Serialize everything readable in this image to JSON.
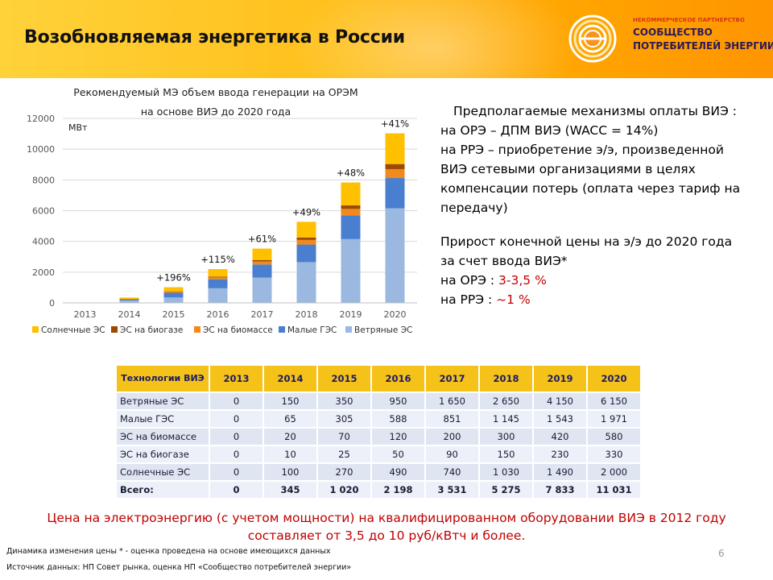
{
  "header": {
    "title": "Возобновляемая энергетика в России"
  },
  "logo": {
    "small": "НЕКОММЕРЧЕСКОЕ ПАРТНЕРСТВО",
    "line1": "СООБЩЕСТВО",
    "line2": "ПОТРЕБИТЕЛЕЙ ЭНЕРГИИ"
  },
  "colors": {
    "solar": "#ffc000",
    "biogas": "#9c4a00",
    "biomass": "#f08a1c",
    "hydro": "#4a7fd0",
    "wind": "#9ab8e0",
    "accent_red": "#c00000",
    "table_header": "#f5c21a"
  },
  "chart_data": {
    "type": "bar",
    "stacked": true,
    "title": "Рекомендуемый МЭ объем ввода генерации на ОРЭМ на основе ВИЭ до 2020 года",
    "title_lines": [
      "Рекомендуемый МЭ объем ввода генерации на ОРЭМ",
      "на основе ВИЭ до 2020 года"
    ],
    "ylabel": "МВт",
    "ylim": [
      0,
      12000
    ],
    "yticks": [
      "0",
      "2000",
      "4000",
      "6000",
      "8000",
      "10000",
      "12000"
    ],
    "grid": true,
    "legend_position": "bottom",
    "categories": [
      "2013",
      "2014",
      "2015",
      "2016",
      "2017",
      "2018",
      "2019",
      "2020"
    ],
    "series": [
      {
        "name": "Ветряные ЭС",
        "color": "#9ab8e0",
        "values": [
          0,
          150,
          350,
          950,
          1650,
          2650,
          4150,
          6150
        ]
      },
      {
        "name": "Малые ГЭС",
        "color": "#4a7fd0",
        "values": [
          0,
          65,
          305,
          588,
          851,
          1145,
          1543,
          1971
        ]
      },
      {
        "name": "ЭС на биомассе",
        "color": "#f08a1c",
        "values": [
          0,
          20,
          70,
          120,
          200,
          300,
          420,
          580
        ]
      },
      {
        "name": "ЭС на биогазе",
        "color": "#9c4a00",
        "values": [
          0,
          10,
          25,
          50,
          90,
          150,
          230,
          330
        ]
      },
      {
        "name": "Солнечные ЭС",
        "color": "#ffc000",
        "values": [
          0,
          100,
          270,
          490,
          740,
          1030,
          1490,
          2000
        ]
      }
    ],
    "legend_order": [
      "Солнечные ЭС",
      "ЭС на биогазе",
      "ЭС на биомассе",
      "Малые ГЭС",
      "Ветряные ЭС"
    ],
    "annotations": [
      {
        "category": "2015",
        "text": "+196%"
      },
      {
        "category": "2016",
        "text": "+115%"
      },
      {
        "category": "2017",
        "text": "+61%"
      },
      {
        "category": "2018",
        "text": "+49%"
      },
      {
        "category": "2019",
        "text": "+48%"
      },
      {
        "category": "2020",
        "text": "+41%"
      }
    ]
  },
  "mechanisms": {
    "heading": "Предполагаемые механизмы оплаты ВИЭ :",
    "ore": "на ОРЭ – ДПМ ВИЭ (WACC = 14%)",
    "rre": "на РРЭ – приобретение э/э, произведенной ВИЭ сетевыми организациями в целях компенсации потерь (оплата через тариф на передачу)",
    "growth_heading": "Прирост конечной цены на э/э до 2020 года за счет ввода ВИЭ*",
    "ore_label": "на ОРЭ :",
    "ore_value": "3-3,5 %",
    "rre_label": "на РРЭ :",
    "rre_value": "~1 %"
  },
  "table": {
    "header_tech": "Технологии ВИЭ",
    "years": [
      "2013",
      "2014",
      "2015",
      "2016",
      "2017",
      "2018",
      "2019",
      "2020"
    ],
    "rows": [
      {
        "label": "Ветряные ЭС",
        "values": [
          "0",
          "150",
          "350",
          "950",
          "1 650",
          "2 650",
          "4 150",
          "6 150"
        ]
      },
      {
        "label": "Малые ГЭС",
        "values": [
          "0",
          "65",
          "305",
          "588",
          "851",
          "1 145",
          "1 543",
          "1 971"
        ]
      },
      {
        "label": "ЭС на биомассе",
        "values": [
          "0",
          "20",
          "70",
          "120",
          "200",
          "300",
          "420",
          "580"
        ]
      },
      {
        "label": "ЭС на биогазе",
        "values": [
          "0",
          "10",
          "25",
          "50",
          "90",
          "150",
          "230",
          "330"
        ]
      },
      {
        "label": "Солнечные ЭС",
        "values": [
          "0",
          "100",
          "270",
          "490",
          "740",
          "1 030",
          "1 490",
          "2 000"
        ]
      }
    ],
    "total": {
      "label": "Всего:",
      "values": [
        "0",
        "345",
        "1 020",
        "2 198",
        "3 531",
        "5 275",
        "7 833",
        "11 031"
      ]
    }
  },
  "price_note": {
    "line1": "Цена на электроэнергию (с учетом мощности) на квалифицированном оборудовании ВИЭ в 2012 году",
    "line2": "составляет от 3,5 до 10 руб/кВтч и более."
  },
  "footnotes": {
    "dynamics": "Динамика изменения цены * - оценка проведена на основе имеющихся данных",
    "source": "Источник данных: НП Совет рынка, оценка НП «Сообщество потребителей энергии»"
  },
  "page_number": "6"
}
